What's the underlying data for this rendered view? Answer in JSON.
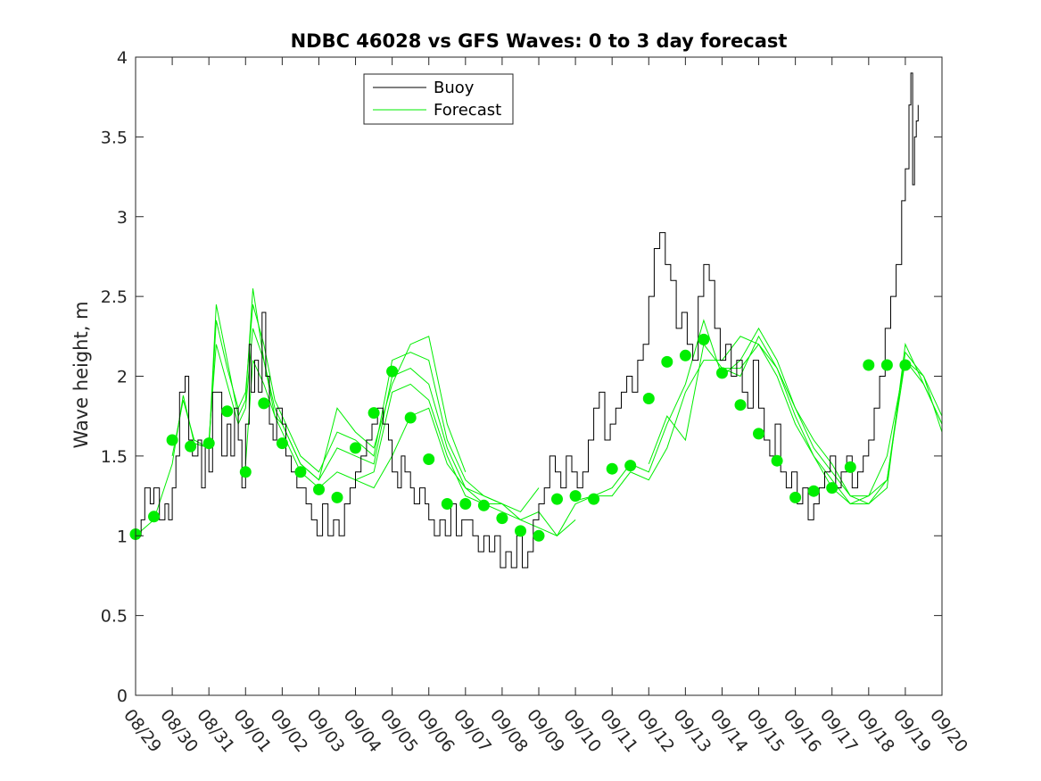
{
  "chart_data": {
    "type": "line",
    "title": "NDBC 46028 vs GFS Waves: 0 to 3 day forecast",
    "xlabel": "",
    "ylabel": "Wave height, m",
    "xlim": [
      0,
      22
    ],
    "ylim": [
      0,
      4
    ],
    "yticks": [
      0,
      0.5,
      1,
      1.5,
      2,
      2.5,
      3,
      3.5,
      4
    ],
    "ytick_labels": [
      "0",
      "0.5",
      "1",
      "1.5",
      "2",
      "2.5",
      "3",
      "3.5",
      "4"
    ],
    "xtick_labels": [
      "08/29",
      "08/30",
      "08/31",
      "09/01",
      "09/02",
      "09/03",
      "09/04",
      "09/05",
      "09/06",
      "09/07",
      "09/08",
      "09/09",
      "09/10",
      "09/11",
      "09/12",
      "09/13",
      "09/14",
      "09/15",
      "09/16",
      "09/17",
      "09/18",
      "09/19",
      "09/20"
    ],
    "legend": {
      "placement": "top-center",
      "entries": [
        "Buoy",
        "Forecast"
      ]
    },
    "colors": {
      "buoy": "#000000",
      "forecast": "#00ee00",
      "axis": "#262626"
    },
    "buoy": {
      "x": [
        0,
        0.15,
        0.25,
        0.4,
        0.5,
        0.65,
        0.8,
        0.9,
        1.0,
        1.1,
        1.2,
        1.35,
        1.45,
        1.55,
        1.7,
        1.8,
        1.9,
        2.0,
        2.1,
        2.2,
        2.35,
        2.5,
        2.6,
        2.7,
        2.8,
        2.9,
        3.0,
        3.1,
        3.15,
        3.25,
        3.35,
        3.45,
        3.55,
        3.65,
        3.75,
        3.85,
        4.0,
        4.1,
        4.25,
        4.4,
        4.5,
        4.65,
        4.8,
        4.95,
        5.1,
        5.25,
        5.4,
        5.55,
        5.7,
        5.85,
        6.0,
        6.15,
        6.3,
        6.45,
        6.6,
        6.75,
        6.9,
        7.0,
        7.15,
        7.25,
        7.35,
        7.5,
        7.6,
        7.75,
        7.9,
        8.0,
        8.15,
        8.3,
        8.45,
        8.6,
        8.75,
        8.9,
        9.05,
        9.2,
        9.35,
        9.5,
        9.65,
        9.8,
        9.95,
        10.1,
        10.25,
        10.4,
        10.55,
        10.7,
        10.85,
        11.0,
        11.15,
        11.3,
        11.45,
        11.6,
        11.75,
        11.9,
        12.05,
        12.2,
        12.35,
        12.5,
        12.65,
        12.8,
        12.95,
        13.1,
        13.25,
        13.4,
        13.55,
        13.7,
        13.85,
        14.0,
        14.15,
        14.3,
        14.45,
        14.6,
        14.75,
        14.9,
        15.05,
        15.2,
        15.35,
        15.5,
        15.65,
        15.8,
        15.95,
        16.1,
        16.25,
        16.4,
        16.55,
        16.7,
        16.85,
        17.0,
        17.15,
        17.3,
        17.45,
        17.6,
        17.75,
        17.9,
        18.05,
        18.2,
        18.35,
        18.5,
        18.65,
        18.8,
        18.95,
        19.1,
        19.25,
        19.4,
        19.55,
        19.7,
        19.85,
        20.0,
        20.15,
        20.3,
        20.45,
        20.6,
        20.75,
        20.9,
        21.0,
        21.1,
        21.15,
        21.2,
        21.25,
        21.3,
        21.35
      ],
      "y": [
        1.0,
        1.1,
        1.3,
        1.2,
        1.3,
        1.1,
        1.2,
        1.1,
        1.3,
        1.5,
        1.9,
        2.0,
        1.6,
        1.5,
        1.6,
        1.3,
        1.6,
        1.4,
        1.9,
        1.9,
        1.5,
        1.7,
        1.5,
        1.8,
        1.6,
        1.3,
        1.7,
        2.2,
        1.9,
        2.1,
        1.9,
        2.4,
        2.0,
        1.7,
        1.6,
        1.8,
        1.7,
        1.5,
        1.4,
        1.3,
        1.3,
        1.2,
        1.1,
        1.0,
        1.2,
        1.0,
        1.1,
        1.0,
        1.2,
        1.3,
        1.4,
        1.5,
        1.6,
        1.7,
        1.8,
        1.7,
        1.6,
        1.4,
        1.3,
        1.5,
        1.4,
        1.3,
        1.2,
        1.3,
        1.2,
        1.1,
        1.0,
        1.1,
        1.0,
        1.2,
        1.0,
        1.1,
        1.1,
        1.0,
        0.9,
        1.0,
        0.9,
        1.0,
        0.8,
        0.9,
        0.8,
        1.0,
        0.8,
        0.9,
        1.1,
        1.2,
        1.3,
        1.5,
        1.4,
        1.3,
        1.5,
        1.4,
        1.3,
        1.4,
        1.6,
        1.8,
        1.9,
        1.6,
        1.7,
        1.8,
        1.9,
        2.0,
        1.9,
        2.1,
        2.2,
        2.5,
        2.8,
        2.9,
        2.7,
        2.6,
        2.3,
        2.4,
        2.2,
        2.1,
        2.5,
        2.7,
        2.6,
        2.3,
        2.1,
        2.2,
        2.0,
        2.1,
        1.9,
        1.8,
        2.1,
        1.8,
        1.6,
        1.5,
        1.7,
        1.4,
        1.3,
        1.4,
        1.2,
        1.3,
        1.1,
        1.2,
        1.3,
        1.4,
        1.5,
        1.3,
        1.4,
        1.5,
        1.3,
        1.4,
        1.5,
        1.6,
        1.8,
        2.0,
        2.3,
        2.5,
        2.7,
        3.1,
        3.3,
        3.7,
        3.9,
        3.2,
        3.5,
        3.6,
        3.7
      ]
    },
    "forecast_runs": [
      {
        "x": [
          0,
          0.5,
          1.0,
          1.3,
          1.6,
          2.0,
          2.2,
          2.5,
          2.8,
          3.0,
          3.2,
          3.5,
          3.8,
          4.0,
          4.5,
          5.0,
          5.5,
          6.0,
          6.5,
          7.0,
          7.5,
          8.0,
          8.5,
          9.0
        ],
        "y": [
          1.0,
          1.1,
          1.45,
          1.88,
          1.58,
          1.55,
          2.45,
          2.1,
          1.75,
          1.85,
          2.55,
          2.1,
          1.75,
          1.7,
          1.45,
          1.35,
          1.8,
          1.65,
          1.55,
          1.95,
          2.2,
          2.25,
          1.7,
          1.4
        ]
      },
      {
        "x": [
          1.0,
          1.3,
          1.6,
          2.0,
          2.2,
          2.5,
          2.8,
          3.0,
          3.2,
          3.5,
          3.8,
          4.0,
          4.5,
          5.0,
          5.5,
          6.0,
          6.5,
          7.0,
          7.5,
          8.0,
          8.5,
          9.0,
          9.5,
          10.0
        ],
        "y": [
          1.5,
          1.85,
          1.6,
          1.55,
          2.35,
          2.05,
          1.8,
          1.9,
          2.45,
          2.2,
          1.85,
          1.75,
          1.5,
          1.4,
          1.65,
          1.6,
          1.5,
          2.1,
          2.15,
          2.1,
          1.6,
          1.35,
          1.25,
          1.2
        ]
      },
      {
        "x": [
          2.0,
          2.2,
          2.5,
          2.8,
          3.0,
          3.2,
          3.5,
          3.8,
          4.0,
          4.5,
          5.0,
          5.5,
          6.0,
          6.5,
          7.0,
          7.5,
          8.0,
          8.5,
          9.0,
          9.5,
          10.0,
          10.5,
          11.0
        ],
        "y": [
          1.6,
          2.2,
          1.95,
          1.7,
          1.8,
          2.3,
          2.1,
          1.8,
          1.7,
          1.45,
          1.35,
          1.55,
          1.5,
          1.45,
          2.0,
          2.05,
          1.95,
          1.55,
          1.3,
          1.25,
          1.2,
          1.15,
          1.3
        ]
      },
      {
        "x": [
          3.0,
          3.2,
          3.5,
          3.8,
          4.0,
          4.5,
          5.0,
          5.5,
          6.0,
          6.5,
          7.0,
          7.5,
          8.0,
          8.5,
          9.0,
          9.5,
          10.0,
          10.5,
          11.0,
          11.5,
          12.0
        ],
        "y": [
          1.45,
          2.1,
          1.95,
          1.75,
          1.65,
          1.4,
          1.3,
          1.4,
          1.35,
          1.4,
          1.9,
          1.95,
          1.85,
          1.5,
          1.25,
          1.2,
          1.15,
          1.1,
          1.15,
          1.0,
          1.1
        ]
      },
      {
        "x": [
          6.0,
          6.5,
          7.0,
          7.5,
          8.0,
          8.5,
          9.0,
          9.5,
          10.0,
          10.5,
          11.0,
          11.5,
          12.0,
          12.5,
          13.0,
          13.5,
          14.0,
          14.5,
          15.0,
          15.5,
          16.0,
          16.5,
          17.0,
          17.5,
          18.0,
          18.5,
          19.0,
          19.5,
          20.0,
          20.5,
          21.0,
          21.5,
          22.0
        ],
        "y": [
          1.35,
          1.3,
          1.5,
          1.75,
          1.8,
          1.45,
          1.3,
          1.2,
          1.2,
          1.1,
          1.05,
          1.0,
          1.2,
          1.25,
          1.25,
          1.4,
          1.35,
          1.55,
          1.9,
          2.1,
          2.1,
          2.25,
          2.2,
          2.05,
          1.8,
          1.6,
          1.45,
          1.25,
          1.25,
          1.5,
          2.1,
          1.95,
          1.7
        ]
      },
      {
        "x": [
          12.0,
          12.5,
          13.0,
          13.5,
          14.0,
          14.5,
          15.0,
          15.5,
          16.0,
          16.5,
          17.0,
          17.5,
          18.0,
          18.5,
          19.0,
          19.5,
          20.0,
          20.5,
          21.0,
          21.5,
          22.0
        ],
        "y": [
          1.22,
          1.25,
          1.3,
          1.45,
          1.4,
          1.7,
          1.95,
          2.35,
          2.0,
          2.1,
          2.3,
          2.1,
          1.8,
          1.55,
          1.4,
          1.25,
          1.2,
          1.35,
          2.15,
          2.0,
          1.75
        ]
      },
      {
        "x": [
          14.0,
          14.5,
          15.0,
          15.5,
          16.0,
          16.5,
          17.0,
          17.5,
          18.0,
          18.5,
          19.0,
          19.5,
          20.0,
          20.5,
          21.0,
          21.5,
          22.0
        ],
        "y": [
          1.45,
          1.75,
          1.6,
          2.2,
          2.05,
          2.0,
          2.25,
          2.05,
          1.75,
          1.5,
          1.35,
          1.2,
          1.2,
          1.3,
          2.2,
          1.95,
          1.7
        ]
      },
      {
        "x": [
          16.0,
          16.5,
          17.0,
          17.5,
          18.0,
          18.5,
          19.0,
          19.5,
          20.0,
          20.5,
          21.0,
          21.5,
          22.0
        ],
        "y": [
          2.05,
          2.05,
          2.2,
          2.0,
          1.7,
          1.5,
          1.3,
          1.2,
          1.25,
          1.35,
          2.1,
          2.0,
          1.65
        ]
      }
    ],
    "forecast_points": {
      "x": [
        0,
        0.5,
        1.0,
        1.5,
        2.0,
        2.5,
        3.0,
        3.5,
        4.0,
        4.5,
        5.0,
        5.5,
        6.0,
        6.5,
        7.0,
        7.5,
        8.0,
        8.5,
        9.0,
        9.5,
        10.0,
        10.5,
        11.0,
        11.5,
        12.0,
        12.5,
        13.0,
        13.5,
        14.0,
        14.5,
        15.0,
        15.5,
        16.0,
        16.5,
        17.0,
        17.5,
        18.0,
        18.5,
        19.0,
        19.5,
        20.0,
        20.5,
        21.0
      ],
      "y": [
        1.01,
        1.12,
        1.6,
        1.56,
        1.58,
        1.78,
        1.4,
        1.83,
        1.58,
        1.4,
        1.29,
        1.24,
        1.55,
        1.77,
        2.03,
        1.74,
        1.48,
        1.2,
        1.2,
        1.19,
        1.11,
        1.03,
        1.0,
        1.23,
        1.25,
        1.23,
        1.42,
        1.44,
        1.86,
        2.09,
        2.13,
        2.23,
        2.02,
        1.82,
        1.64,
        1.47,
        1.24,
        1.28,
        1.3,
        1.43,
        2.07,
        2.07,
        2.07
      ]
    }
  }
}
